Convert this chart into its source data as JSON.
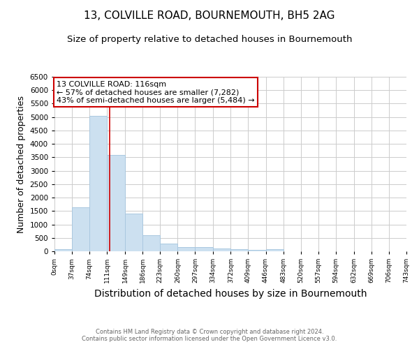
{
  "title": "13, COLVILLE ROAD, BOURNEMOUTH, BH5 2AG",
  "subtitle": "Size of property relative to detached houses in Bournemouth",
  "xlabel": "Distribution of detached houses by size in Bournemouth",
  "ylabel": "Number of detached properties",
  "bar_color": "#cce0f0",
  "bar_edge_color": "#aac8e0",
  "bin_edges": [
    0,
    37,
    74,
    111,
    149,
    186,
    223,
    260,
    297,
    334,
    372,
    409,
    446,
    483,
    520,
    557,
    594,
    632,
    669,
    706,
    743
  ],
  "bar_heights": [
    75,
    1640,
    5050,
    3580,
    1400,
    610,
    295,
    155,
    150,
    105,
    70,
    50,
    70,
    0,
    0,
    0,
    0,
    0,
    0,
    0
  ],
  "property_line_x": 116,
  "property_line_color": "#cc0000",
  "ylim": [
    0,
    6500
  ],
  "yticks": [
    0,
    500,
    1000,
    1500,
    2000,
    2500,
    3000,
    3500,
    4000,
    4500,
    5000,
    5500,
    6000,
    6500
  ],
  "annotation_text": "13 COLVILLE ROAD: 116sqm\n← 57% of detached houses are smaller (7,282)\n43% of semi-detached houses are larger (5,484) →",
  "annotation_box_color": "#cc0000",
  "grid_color": "#cccccc",
  "background_color": "#ffffff",
  "footer_text": "Contains HM Land Registry data © Crown copyright and database right 2024.\nContains public sector information licensed under the Open Government Licence v3.0.",
  "title_fontsize": 11,
  "subtitle_fontsize": 9.5,
  "xlabel_fontsize": 10,
  "ylabel_fontsize": 9
}
